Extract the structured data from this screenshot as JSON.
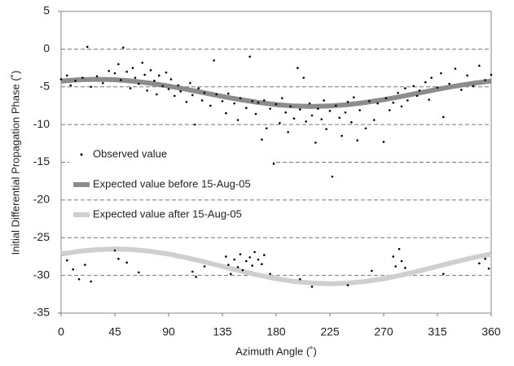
{
  "chart_data": {
    "type": "scatter",
    "xlabel": "Azimuth Angle (˚)",
    "ylabel": "Initial Differential Propagation Phase (˚)",
    "xlim": [
      0,
      360
    ],
    "xticks": [
      0,
      45,
      90,
      135,
      180,
      225,
      270,
      315,
      360
    ],
    "ylim": [
      -35,
      5
    ],
    "yticks": [
      5,
      0,
      -5,
      -10,
      -15,
      -20,
      -25,
      -30,
      -35
    ],
    "grid": true,
    "legend": "left",
    "series": [
      {
        "name": "Observed value",
        "color": "#000000",
        "style": "points",
        "x": [
          0,
          5,
          8,
          12,
          18,
          22,
          25,
          30,
          35,
          40,
          45,
          48,
          50,
          52,
          55,
          58,
          60,
          62,
          65,
          68,
          70,
          72,
          75,
          78,
          80,
          82,
          85,
          88,
          90,
          92,
          95,
          98,
          100,
          105,
          108,
          110,
          112,
          115,
          118,
          120,
          125,
          128,
          130,
          135,
          138,
          140,
          145,
          148,
          150,
          155,
          158,
          160,
          163,
          165,
          168,
          170,
          172,
          175,
          178,
          180,
          183,
          185,
          188,
          190,
          192,
          195,
          198,
          200,
          203,
          205,
          208,
          210,
          213,
          215,
          218,
          220,
          222,
          225,
          227,
          230,
          233,
          235,
          238,
          240,
          243,
          245,
          248,
          250,
          255,
          258,
          262,
          265,
          270,
          272,
          275,
          278,
          282,
          285,
          288,
          290,
          295,
          298,
          300,
          305,
          308,
          310,
          315,
          318,
          320,
          325,
          330,
          335,
          340,
          345,
          350,
          355,
          360,
          5,
          10,
          15,
          20,
          25,
          45,
          48,
          55,
          65,
          110,
          113,
          120,
          138,
          140,
          142,
          145,
          148,
          150,
          152,
          155,
          158,
          160,
          162,
          165,
          168,
          170,
          175,
          200,
          210,
          240,
          260,
          278,
          280,
          283,
          285,
          288,
          320,
          350,
          355,
          358
        ],
        "values": [
          -4,
          -3.5,
          -4.8,
          -4.2,
          -3.8,
          0.3,
          -5,
          -3.6,
          -4.5,
          -2.9,
          -3.2,
          -2,
          -4.1,
          0.2,
          -3,
          -5.2,
          -2.5,
          -3.8,
          -4.6,
          -1.8,
          -3.4,
          -5.5,
          -2.8,
          -4.2,
          -6,
          -3.5,
          -4.9,
          -3.1,
          -5.3,
          -4,
          -6.2,
          -4.8,
          -5.6,
          -7,
          -4.5,
          -6.1,
          -10,
          -5.2,
          -6.8,
          -5.8,
          -7.5,
          -1.5,
          -6,
          -6.9,
          -8.5,
          -5.9,
          -7.2,
          -9.4,
          -6.5,
          -7.8,
          -1,
          -6.9,
          -8.6,
          -7.1,
          -12,
          -6.8,
          -10.5,
          -7.9,
          -15.2,
          -7.3,
          -9.8,
          -6.5,
          -8.4,
          -11,
          -7.6,
          -9.2,
          -2.5,
          -8,
          -3.8,
          -9.6,
          -7.2,
          -8.8,
          -12.4,
          -7.9,
          -9.3,
          -6.8,
          -10.6,
          -8.2,
          -16.9,
          -7.5,
          -9.1,
          -11.5,
          -8.4,
          -7,
          -9.7,
          -6.4,
          -12.1,
          -8.1,
          -10.5,
          -6.9,
          -9.4,
          -7.2,
          -12.3,
          -6.5,
          -8.1,
          -7.1,
          -5.8,
          -7.6,
          -5.2,
          -6.8,
          -4.9,
          -6.2,
          -5.5,
          -4.4,
          -6.7,
          -3.8,
          -5.1,
          -3.2,
          -9,
          -4.6,
          -2.6,
          -5.4,
          -3.5,
          -4.9,
          -2.2,
          -4.1,
          -3.4,
          -28,
          -29.2,
          -30.5,
          -28.6,
          -30.8,
          -26.7,
          -27.8,
          -28.3,
          -29.6,
          -29.5,
          -30.2,
          -28.8,
          -27.5,
          -28.6,
          -29.8,
          -27.9,
          -28.9,
          -27.2,
          -29.3,
          -28.1,
          -27.6,
          -28.7,
          -26.9,
          -27.9,
          -28.5,
          -27.3,
          -29.8,
          -30.5,
          -31.5,
          -31.3,
          -29.4,
          -27.5,
          -28.8,
          -26.5,
          -28.1,
          -29,
          -29.8,
          -28.4,
          -27.8,
          -29.1
        ]
      },
      {
        "name": "Expected value before 15-Aug-05",
        "color": "#8c8c8c",
        "style": "line",
        "x": [
          0,
          15,
          30,
          45,
          60,
          75,
          90,
          105,
          120,
          135,
          150,
          165,
          180,
          195,
          210,
          225,
          240,
          255,
          270,
          285,
          300,
          315,
          330,
          345,
          360
        ],
        "values": [
          -4.24,
          -4.06,
          -4,
          -4.06,
          -4.24,
          -4.53,
          -4.9,
          -5.33,
          -5.8,
          -6.27,
          -6.7,
          -7.07,
          -7.36,
          -7.54,
          -7.6,
          -7.54,
          -7.36,
          -7.07,
          -6.7,
          -6.27,
          -5.8,
          -5.33,
          -4.9,
          -4.53,
          -4.24
        ]
      },
      {
        "name": "Expected value after 15-Aug-05",
        "color": "#cfcfcf",
        "style": "line",
        "x": [
          0,
          15,
          30,
          45,
          60,
          75,
          90,
          105,
          120,
          135,
          150,
          165,
          180,
          195,
          210,
          225,
          240,
          255,
          270,
          285,
          300,
          315,
          330,
          345,
          360
        ],
        "values": [
          -27.17,
          -26.81,
          -26.58,
          -26.5,
          -26.58,
          -26.81,
          -27.17,
          -27.65,
          -28.2,
          -28.8,
          -29.4,
          -29.95,
          -30.43,
          -30.79,
          -31.02,
          -31.1,
          -31.02,
          -30.79,
          -30.43,
          -29.95,
          -29.4,
          -28.8,
          -28.2,
          -27.65,
          -27.17
        ]
      }
    ]
  }
}
